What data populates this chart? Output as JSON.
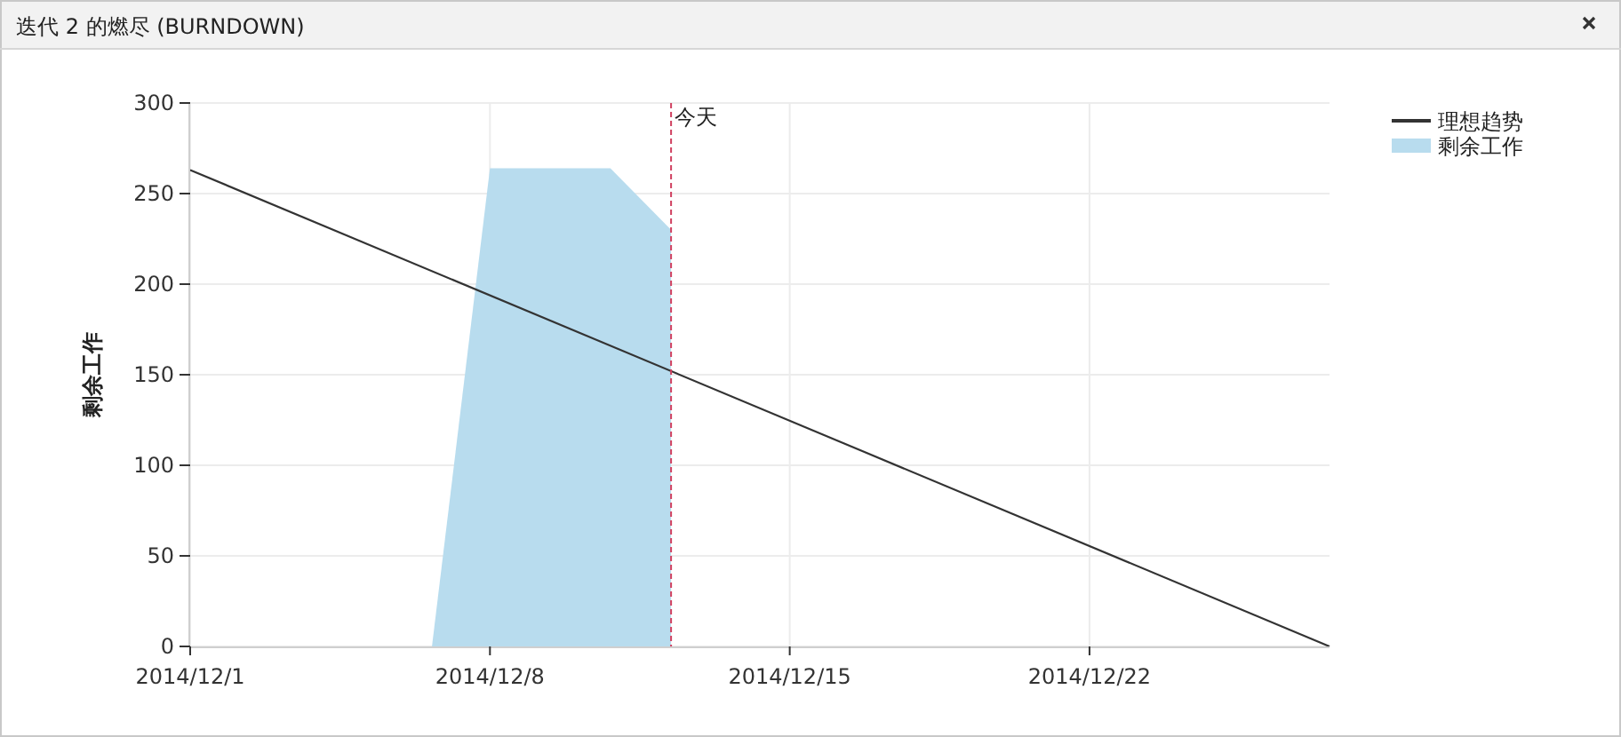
{
  "chart_data": {
    "type": "line",
    "title": "迭代 2 的燃尽 (BURNDOWN)",
    "ylabel": "剩余工作",
    "xlim": [
      "2014-12-01",
      "2014-12-27T14:30"
    ],
    "xticks": [
      {
        "value": "2014-12-01",
        "label": "2014/12/1"
      },
      {
        "value": "2014-12-08",
        "label": "2014/12/8"
      },
      {
        "value": "2014-12-15",
        "label": "2014/12/15"
      },
      {
        "value": "2014-12-22",
        "label": "2014/12/22"
      }
    ],
    "ylim": [
      0,
      300
    ],
    "yticks": [
      0,
      50,
      100,
      150,
      200,
      250,
      300
    ],
    "series": [
      {
        "name": "理想趋势",
        "color": "#333333",
        "x": [
          "2014-12-01",
          "2014-12-27T14:30"
        ],
        "values": [
          263,
          0
        ]
      },
      {
        "name": "剩余工作",
        "type": "area",
        "color": "#b8dcee",
        "x": [
          "2014-12-06T15:30",
          "2014-12-08",
          "2014-12-10T19:30",
          "2014-12-12T05:30"
        ],
        "values": [
          0,
          264,
          264,
          230
        ]
      }
    ],
    "ref_lines": [
      {
        "axis": "x",
        "value": "2014-12-12T05:30",
        "label": "今天",
        "color": "#d04060",
        "line_style": "dashed"
      }
    ],
    "grid": true,
    "legend": "top right"
  }
}
